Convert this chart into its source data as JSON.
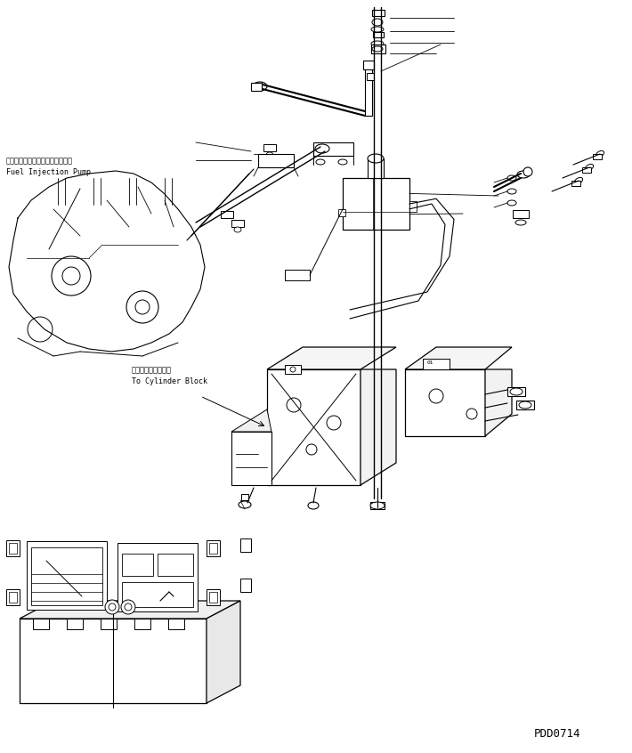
{
  "background_color": "#ffffff",
  "text_color": "#000000",
  "line_color": "#000000",
  "title_code": "PDD0714",
  "label_jp_1": "フェエルインジェクションポンプ",
  "label_en_1": "Fuel Injection Pump",
  "label_jp_2": "シリンダブロックヘ",
  "label_en_2": "To Cylinder Block",
  "fig_width": 7.1,
  "fig_height": 8.46,
  "dpi": 100
}
